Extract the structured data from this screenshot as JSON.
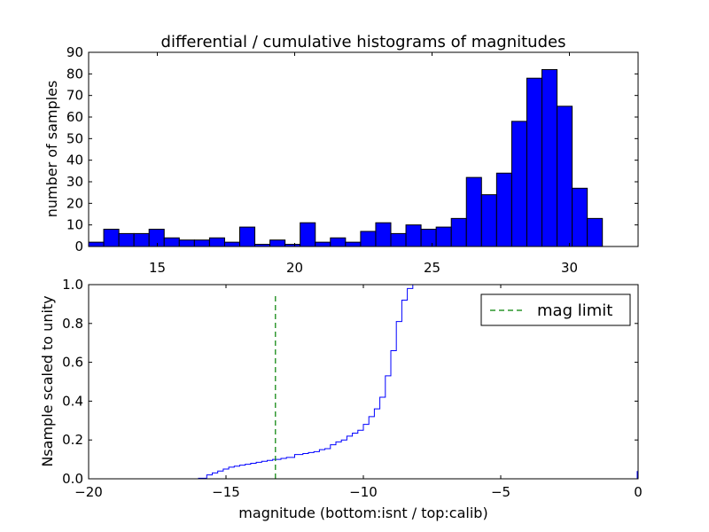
{
  "chart_data": [
    {
      "type": "bar",
      "title": "differential / cumulative histograms of magnitudes",
      "xlabel": "",
      "ylabel": "number of samples",
      "xlim": [
        12.5,
        32.5
      ],
      "ylim": [
        0,
        90
      ],
      "bar_color": "#0000ff",
      "bin_width": 0.55,
      "bin_start": 12.5,
      "values": [
        2,
        8,
        6,
        6,
        8,
        4,
        3,
        3,
        4,
        2,
        9,
        1,
        3,
        1,
        11,
        2,
        4,
        2,
        7,
        11,
        6,
        10,
        8,
        9,
        13,
        32,
        24,
        34,
        58,
        78,
        82,
        65,
        27,
        13
      ],
      "xticks": [
        15,
        20,
        25,
        30
      ],
      "yticks": [
        0,
        10,
        20,
        30,
        40,
        50,
        60,
        70,
        80,
        90
      ],
      "x_axis_position": "top"
    },
    {
      "type": "line",
      "title": "",
      "xlabel": "magnitude (bottom:isnt / top:calib)",
      "ylabel": "Nsample scaled to unity",
      "xlim": [
        -20,
        0
      ],
      "ylim": [
        0,
        1
      ],
      "xticks": [
        -20,
        -15,
        -10,
        -5,
        0
      ],
      "yticks": [
        0.0,
        0.2,
        0.4,
        0.6,
        0.8,
        1.0
      ],
      "legend_position": "top-right",
      "series": [
        {
          "color": "#0000ff",
          "style": "step",
          "x": [
            -20,
            -16.0,
            -15.7,
            -15.5,
            -15.3,
            -15.1,
            -14.9,
            -14.7,
            -14.5,
            -14.3,
            -14.1,
            -13.9,
            -13.7,
            -13.5,
            -13.3,
            -13.0,
            -12.8,
            -12.5,
            -12.2,
            -12.0,
            -11.8,
            -11.6,
            -11.4,
            -11.2,
            -11.0,
            -10.8,
            -10.6,
            -10.4,
            -10.2,
            -10.0,
            -9.8,
            -9.6,
            -9.4,
            -9.2,
            -9.0,
            -8.8,
            -8.6,
            -8.4,
            -8.2,
            -8.0,
            -7.8,
            -7.6,
            -7.5
          ],
          "y": [
            0.0,
            0.003,
            0.02,
            0.03,
            0.04,
            0.05,
            0.06,
            0.065,
            0.07,
            0.075,
            0.08,
            0.085,
            0.09,
            0.095,
            0.1,
            0.105,
            0.11,
            0.125,
            0.13,
            0.135,
            0.14,
            0.15,
            0.155,
            0.175,
            0.19,
            0.2,
            0.22,
            0.235,
            0.25,
            0.28,
            0.32,
            0.36,
            0.42,
            0.53,
            0.66,
            0.81,
            0.92,
            0.98,
            1.0,
            1.0,
            1.0,
            1.0,
            1.0
          ]
        },
        {
          "name": "mag limit",
          "color": "#008000",
          "style": "dashed-vertical",
          "x_value": -13.2,
          "y_range": [
            0,
            0.95
          ]
        }
      ],
      "legend": [
        "mag limit"
      ]
    }
  ]
}
